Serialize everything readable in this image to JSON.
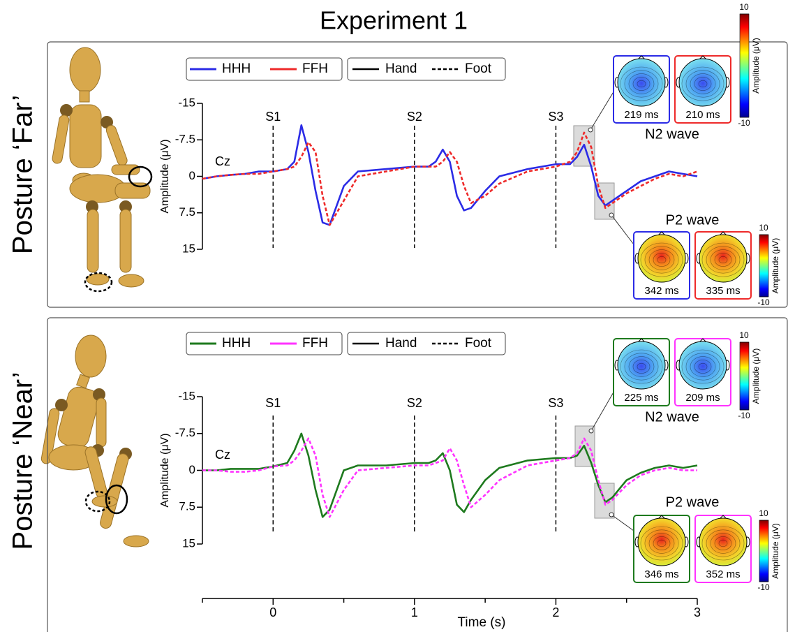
{
  "title": "Experiment 1",
  "chart_data": [
    {
      "type": "line",
      "panel_label": "Posture ‘Far’",
      "channel": "Cz",
      "ylabel": "Amplitude (μV)",
      "xlim": [
        -0.5,
        3
      ],
      "ylim": [
        -15,
        15
      ],
      "y_inverted": true,
      "yticks": [
        -15,
        -7.5,
        0,
        7.5,
        15
      ],
      "x": [
        -0.5,
        -0.4,
        -0.3,
        -0.2,
        -0.1,
        0,
        0.1,
        0.15,
        0.2,
        0.25,
        0.3,
        0.35,
        0.4,
        0.5,
        0.6,
        0.8,
        1.0,
        1.1,
        1.15,
        1.2,
        1.25,
        1.3,
        1.35,
        1.4,
        1.5,
        1.6,
        1.8,
        2.0,
        2.1,
        2.15,
        2.2,
        2.25,
        2.3,
        2.35,
        2.4,
        2.5,
        2.6,
        2.7,
        2.8,
        2.9,
        3.0
      ],
      "series": [
        {
          "name": "HHH",
          "color": "#2b2be6",
          "linestyle": "solid",
          "values": [
            0.5,
            0,
            -0.3,
            -0.5,
            -1,
            -1,
            -1.5,
            -3,
            -10.5,
            -5,
            3,
            9.5,
            10,
            2,
            -1,
            -1.5,
            -2,
            -2,
            -3,
            -5.5,
            -3,
            4,
            7,
            6.5,
            3,
            0,
            -1.5,
            -2.5,
            -2.5,
            -4,
            -6.5,
            -2,
            4,
            6,
            5,
            3,
            1,
            0,
            -1,
            -0.5,
            0
          ]
        },
        {
          "name": "FFH",
          "color": "#ee2a2a",
          "linestyle": "dashed",
          "values": [
            0.5,
            0,
            -0.3,
            -0.5,
            -0.5,
            -1,
            -1.5,
            -2,
            -4,
            -7,
            -5,
            4,
            10,
            5,
            0,
            -1,
            -2,
            -2,
            -2,
            -3,
            -5,
            -3,
            2,
            5.5,
            4,
            1.5,
            -1,
            -2,
            -3,
            -5,
            -9,
            -6,
            2,
            6.5,
            5.5,
            3.5,
            2,
            0.5,
            -0.5,
            0,
            -1
          ]
        }
      ],
      "style_legend": [
        {
          "name": "Hand",
          "linestyle": "solid"
        },
        {
          "name": "Foot",
          "linestyle": "dashed"
        }
      ],
      "stimuli": [
        {
          "x": 0,
          "label": "S1"
        },
        {
          "x": 1,
          "label": "S2"
        },
        {
          "x": 2,
          "label": "S3"
        }
      ],
      "topomaps": [
        {
          "wave": "N2 wave",
          "labels": [
            "219 ms",
            "210 ms"
          ]
        },
        {
          "wave": "P2 wave",
          "labels": [
            "342 ms",
            "335 ms"
          ]
        }
      ],
      "colorbar": {
        "label": "Amplitude (μV)",
        "lim": [
          -10,
          10
        ],
        "ticks": [
          -10,
          10
        ]
      }
    },
    {
      "type": "line",
      "panel_label": "Posture ‘Near’",
      "channel": "Cz",
      "ylabel": "Amplitude (μV)",
      "xlim": [
        -0.5,
        3
      ],
      "ylim": [
        -15,
        15
      ],
      "y_inverted": true,
      "yticks": [
        -15,
        -7.5,
        0,
        7.5,
        15
      ],
      "xticks": [
        0,
        1,
        2,
        3
      ],
      "xminor_ticks": [
        -0.5,
        0.5,
        1.5,
        2.5
      ],
      "xlabel": "Time (s)",
      "x": [
        -0.5,
        -0.4,
        -0.3,
        -0.2,
        -0.1,
        0,
        0.1,
        0.15,
        0.2,
        0.25,
        0.3,
        0.35,
        0.4,
        0.5,
        0.6,
        0.8,
        1.0,
        1.1,
        1.15,
        1.2,
        1.25,
        1.3,
        1.35,
        1.4,
        1.5,
        1.6,
        1.8,
        2.0,
        2.1,
        2.15,
        2.2,
        2.25,
        2.3,
        2.35,
        2.4,
        2.5,
        2.6,
        2.7,
        2.8,
        2.9,
        3.0
      ],
      "series": [
        {
          "name": "HHH",
          "color": "#1e7a1e",
          "linestyle": "solid",
          "values": [
            0,
            0,
            -0.3,
            -0.3,
            -0.3,
            -0.8,
            -1.5,
            -4,
            -7.5,
            -3,
            4,
            9.5,
            8,
            0,
            -1,
            -1,
            -1.5,
            -1.5,
            -2,
            -3.5,
            0,
            7,
            8.5,
            6,
            2,
            -0.5,
            -2,
            -2.5,
            -2.5,
            -3,
            -5,
            -1.5,
            3,
            6.5,
            5.5,
            2,
            0.5,
            -0.5,
            -1,
            -0.5,
            -1
          ]
        },
        {
          "name": "FFH",
          "color": "#ff33ff",
          "linestyle": "dashed",
          "values": [
            0,
            0,
            0.3,
            0.3,
            0,
            -0.8,
            -1,
            -2,
            -4,
            -6.5,
            -3,
            5,
            9.5,
            4,
            0,
            -0.5,
            -1,
            -1,
            -1.5,
            -2,
            -4.5,
            -2,
            3,
            7.5,
            5,
            2,
            -1,
            -2,
            -2.5,
            -3.5,
            -6.5,
            -4,
            2,
            7,
            6,
            3,
            1,
            0,
            -0.5,
            0,
            0
          ]
        }
      ],
      "style_legend": [
        {
          "name": "Hand",
          "linestyle": "solid"
        },
        {
          "name": "Foot",
          "linestyle": "dashed"
        }
      ],
      "stimuli": [
        {
          "x": 0,
          "label": "S1"
        },
        {
          "x": 1,
          "label": "S2"
        },
        {
          "x": 2,
          "label": "S3"
        }
      ],
      "topomaps": [
        {
          "wave": "N2 wave",
          "labels": [
            "225 ms",
            "209 ms"
          ]
        },
        {
          "wave": "P2 wave",
          "labels": [
            "346 ms",
            "352 ms"
          ]
        }
      ],
      "colorbar": {
        "label": "Amplitude (μV)",
        "lim": [
          -10,
          10
        ],
        "ticks": [
          -10,
          10
        ]
      }
    }
  ]
}
